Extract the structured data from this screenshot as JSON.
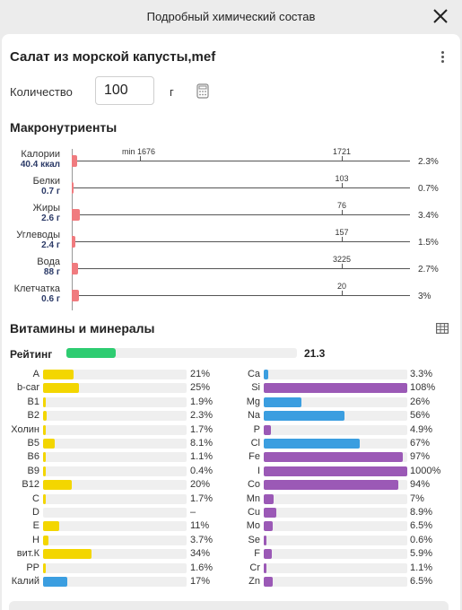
{
  "dialog": {
    "title": "Подробный химический состав"
  },
  "product": {
    "title": "Салат из морской капусты,mef"
  },
  "quantity": {
    "label": "Количество",
    "value": "100",
    "unit": "г"
  },
  "macro": {
    "title": "Макронутриенты",
    "rows": [
      {
        "name": "Калории",
        "value": "40.4 ккал",
        "pct": "2.3%",
        "fraction": 0.023,
        "target": "1721",
        "min": "min 1676"
      },
      {
        "name": "Белки",
        "value": "0.7 г",
        "pct": "0.7%",
        "fraction": 0.007,
        "target": "103"
      },
      {
        "name": "Жиры",
        "value": "2.6 г",
        "pct": "3.4%",
        "fraction": 0.034,
        "target": "76"
      },
      {
        "name": "Углеводы",
        "value": "2.4 г",
        "pct": "1.5%",
        "fraction": 0.015,
        "target": "157"
      },
      {
        "name": "Вода",
        "value": "88 г",
        "pct": "2.7%",
        "fraction": 0.027,
        "target": "3225"
      },
      {
        "name": "Клетчатка",
        "value": "0.6 г",
        "pct": "3%",
        "fraction": 0.03,
        "target": "20"
      }
    ]
  },
  "vitamins": {
    "title": "Витамины и минералы",
    "rating": {
      "label": "Рейтинг",
      "value": "21.3",
      "fraction": 0.213
    },
    "left": [
      {
        "name": "A",
        "pct": "21%",
        "fraction": 0.21
      },
      {
        "name": "b-car",
        "pct": "25%",
        "fraction": 0.25
      },
      {
        "name": "B1",
        "pct": "1.9%",
        "fraction": 0.019
      },
      {
        "name": "B2",
        "pct": "2.3%",
        "fraction": 0.023
      },
      {
        "name": "Холин",
        "pct": "1.7%",
        "fraction": 0.017
      },
      {
        "name": "B5",
        "pct": "8.1%",
        "fraction": 0.081
      },
      {
        "name": "B6",
        "pct": "1.1%",
        "fraction": 0.011
      },
      {
        "name": "B9",
        "pct": "0.4%",
        "fraction": 0.004
      },
      {
        "name": "B12",
        "pct": "20%",
        "fraction": 0.2
      },
      {
        "name": "C",
        "pct": "1.7%",
        "fraction": 0.017
      },
      {
        "name": "D",
        "pct": "–",
        "fraction": 0
      },
      {
        "name": "E",
        "pct": "11%",
        "fraction": 0.11
      },
      {
        "name": "H",
        "pct": "3.7%",
        "fraction": 0.037
      },
      {
        "name": "вит.К",
        "pct": "34%",
        "fraction": 0.34
      },
      {
        "name": "PP",
        "pct": "1.6%",
        "fraction": 0.016
      },
      {
        "name": "Калий",
        "pct": "17%",
        "fraction": 0.17,
        "mineral": true
      }
    ],
    "right": [
      {
        "name": "Ca",
        "pct": "3.3%",
        "fraction": 0.033,
        "over": false
      },
      {
        "name": "Si",
        "pct": "108%",
        "fraction": 1.0,
        "over": true
      },
      {
        "name": "Mg",
        "pct": "26%",
        "fraction": 0.26,
        "over": false
      },
      {
        "name": "Na",
        "pct": "56%",
        "fraction": 0.56,
        "over": false
      },
      {
        "name": "P",
        "pct": "4.9%",
        "fraction": 0.049,
        "over": true
      },
      {
        "name": "Cl",
        "pct": "67%",
        "fraction": 0.67,
        "over": false
      },
      {
        "name": "Fe",
        "pct": "97%",
        "fraction": 0.97,
        "over": true
      },
      {
        "name": "I",
        "pct": "1000%",
        "fraction": 1.0,
        "over": true
      },
      {
        "name": "Co",
        "pct": "94%",
        "fraction": 0.94,
        "over": true
      },
      {
        "name": "Mn",
        "pct": "7%",
        "fraction": 0.07,
        "over": true
      },
      {
        "name": "Cu",
        "pct": "8.9%",
        "fraction": 0.089,
        "over": true
      },
      {
        "name": "Mo",
        "pct": "6.5%",
        "fraction": 0.065,
        "over": true
      },
      {
        "name": "Se",
        "pct": "0.6%",
        "fraction": 0.006,
        "over": true
      },
      {
        "name": "F",
        "pct": "5.9%",
        "fraction": 0.059,
        "over": true
      },
      {
        "name": "Cr",
        "pct": "1.1%",
        "fraction": 0.011,
        "over": true
      },
      {
        "name": "Zn",
        "pct": "6.5%",
        "fraction": 0.065,
        "over": true
      }
    ]
  },
  "colors": {
    "macro_bar": "#f07b7f",
    "vitamin": "#f3d600",
    "mineral_blue": "#3b9ee0",
    "mineral_purple": "#9b59b6",
    "rating": "#2ecc71"
  }
}
